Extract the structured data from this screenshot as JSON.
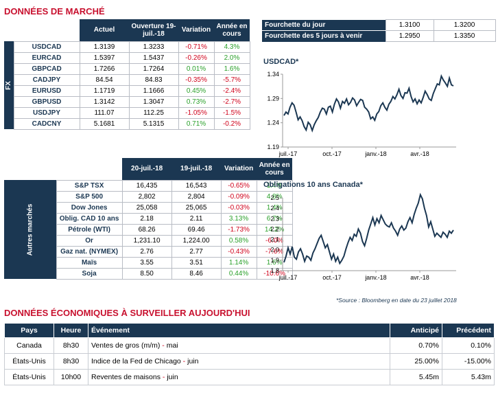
{
  "title_market": "DONNÉES DE MARCHÉ",
  "fx": {
    "side_label": "FX",
    "headers": [
      "Actuel",
      "Ouverture 19-juil.-18",
      "Variation",
      "Année en cours"
    ],
    "rows": [
      {
        "name": "USDCAD",
        "actuel": "1.3139",
        "ouverture": "1.3233",
        "variation": "-0.71%",
        "annee": "4.3%"
      },
      {
        "name": "EURCAD",
        "actuel": "1.5397",
        "ouverture": "1.5437",
        "variation": "-0.26%",
        "annee": "2.0%"
      },
      {
        "name": "GBPCAD",
        "actuel": "1.7266",
        "ouverture": "1.7264",
        "variation": "0.01%",
        "annee": "1.6%"
      },
      {
        "name": "CADJPY",
        "actuel": "84.54",
        "ouverture": "84.83",
        "variation": "-0.35%",
        "annee": "-5.7%"
      },
      {
        "name": "EURUSD",
        "actuel": "1.1719",
        "ouverture": "1.1666",
        "variation": "0.45%",
        "annee": "-2.4%"
      },
      {
        "name": "GBPUSD",
        "actuel": "1.3142",
        "ouverture": "1.3047",
        "variation": "0.73%",
        "annee": "-2.7%"
      },
      {
        "name": "USDJPY",
        "actuel": "111.07",
        "ouverture": "112.25",
        "variation": "-1.05%",
        "annee": "-1.5%"
      },
      {
        "name": "CADCNY",
        "actuel": "5.1681",
        "ouverture": "5.1315",
        "variation": "0.71%",
        "annee": "-0.2%"
      }
    ]
  },
  "other": {
    "side_label": "Autres marchés",
    "headers": [
      "20-juil.-18",
      "19-juil.-18",
      "Variation",
      "Année en cours"
    ],
    "rows": [
      {
        "name": "S&P TSX",
        "a": "16,435",
        "b": "16,543",
        "variation": "-0.65%",
        "annee": "1.4%"
      },
      {
        "name": "S&P 500",
        "a": "2,802",
        "b": "2,804",
        "variation": "-0.09%",
        "annee": "4.8%"
      },
      {
        "name": "Dow Jones",
        "a": "25,058",
        "b": "25,065",
        "variation": "-0.03%",
        "annee": "1.4%"
      },
      {
        "name": "Oblig. CAD 10 ans",
        "a": "2.18",
        "b": "2.11",
        "variation": "3.13%",
        "annee": "6.7%"
      },
      {
        "name": "Pétrole (WTI)",
        "a": "68.26",
        "b": "69.46",
        "variation": "-1.73%",
        "annee": "14.2%"
      },
      {
        "name": "Or",
        "a": "1,231.10",
        "b": "1,224.00",
        "variation": "0.58%",
        "annee": "-6.0%"
      },
      {
        "name": "Gaz nat. (NYMEX)",
        "a": "2.76",
        "b": "2.77",
        "variation": "-0.43%",
        "annee": "-7.6%"
      },
      {
        "name": "Maïs",
        "a": "3.55",
        "b": "3.51",
        "variation": "1.14%",
        "annee": "1.6%"
      },
      {
        "name": "Soja",
        "a": "8.50",
        "b": "8.46",
        "variation": "0.44%",
        "annee": "-10.6%"
      }
    ]
  },
  "range": {
    "rows": [
      {
        "label": "Fourchette du jour",
        "low": "1.3100",
        "high": "1.3200"
      },
      {
        "label": "Fourchette des 5 jours à venir",
        "low": "1.2950",
        "high": "1.3350"
      }
    ]
  },
  "colors": {
    "navy": "#1b3752",
    "red": "#c8102e",
    "neg": "#d0021b",
    "pos": "#2aa02a"
  },
  "chart_data": [
    {
      "type": "line",
      "title": "USDCAD*",
      "x_ticks": [
        "juil.-17",
        "oct.-17",
        "janv.-18",
        "avr.-18"
      ],
      "y_ticks": [
        "1.19",
        "1.24",
        "1.29",
        "1.34"
      ],
      "ylim": [
        1.19,
        1.34
      ],
      "series": [
        {
          "values": [
            1.255,
            1.262,
            1.258,
            1.272,
            1.281,
            1.276,
            1.262,
            1.246,
            1.252,
            1.244,
            1.232,
            1.225,
            1.241,
            1.236,
            1.224,
            1.236,
            1.244,
            1.251,
            1.262,
            1.27,
            1.268,
            1.258,
            1.272,
            1.274,
            1.262,
            1.278,
            1.289,
            1.283,
            1.27,
            1.284,
            1.28,
            1.289,
            1.277,
            1.282,
            1.291,
            1.287,
            1.275,
            1.282,
            1.288,
            1.286,
            1.272,
            1.268,
            1.262,
            1.248,
            1.252,
            1.245,
            1.258,
            1.263,
            1.275,
            1.281,
            1.272,
            1.266,
            1.278,
            1.284,
            1.294,
            1.289,
            1.298,
            1.309,
            1.296,
            1.29,
            1.302,
            1.301,
            1.311,
            1.294,
            1.283,
            1.289,
            1.279,
            1.287,
            1.281,
            1.292,
            1.305,
            1.298,
            1.289,
            1.286,
            1.3,
            1.31,
            1.32,
            1.318,
            1.336,
            1.328,
            1.322,
            1.315,
            1.332,
            1.318,
            1.316
          ]
        }
      ]
    },
    {
      "type": "line",
      "title": "Obligations 10 ans Canada*",
      "x_ticks": [
        "juil.-17",
        "oct.-17",
        "janv.-18",
        "avr.-18"
      ],
      "y_ticks": [
        "1.8",
        "1.9",
        "2.0",
        "2.1",
        "2.2",
        "2.3",
        "2.4",
        "2.5"
      ],
      "ylim": [
        1.8,
        2.5
      ],
      "series": [
        {
          "values": [
            1.88,
            1.94,
            2.02,
            1.96,
            2.03,
            1.93,
            1.91,
            1.98,
            2.01,
            1.96,
            1.89,
            1.94,
            1.93,
            1.9,
            1.97,
            2.01,
            2.06,
            2.11,
            2.14,
            2.08,
            2.02,
            2.05,
            1.98,
            1.91,
            1.96,
            1.89,
            1.93,
            1.87,
            1.9,
            1.94,
            2.01,
            2.07,
            2.12,
            2.09,
            2.15,
            2.13,
            2.2,
            2.16,
            2.08,
            2.04,
            2.11,
            2.19,
            2.25,
            2.31,
            2.24,
            2.3,
            2.26,
            2.33,
            2.29,
            2.25,
            2.23,
            2.22,
            2.26,
            2.21,
            2.18,
            2.14,
            2.2,
            2.23,
            2.19,
            2.21,
            2.27,
            2.31,
            2.26,
            2.34,
            2.4,
            2.45,
            2.53,
            2.49,
            2.4,
            2.33,
            2.22,
            2.27,
            2.2,
            2.13,
            2.16,
            2.14,
            2.12,
            2.17,
            2.15,
            2.12,
            2.18,
            2.16,
            2.19
          ]
        }
      ]
    }
  ],
  "source_note": "*Source : Bloomberg en date du 23 juillet 2018",
  "title_econ": "DONNÉES ÉCONOMIQUES À SURVEILLER AUJOURD'HUI",
  "econ": {
    "headers": [
      "Pays",
      "Heure",
      "Événement",
      "Anticipé",
      "Précédent"
    ],
    "rows": [
      {
        "pays": "Canada",
        "heure": "8h30",
        "event": "Ventes de gros (m/m)",
        "period": "mai",
        "anticipe": "0.70%",
        "precedent": "0.10%"
      },
      {
        "pays": "États-Unis",
        "heure": "8h30",
        "event": "Indice de la Fed de Chicago",
        "period": "juin",
        "anticipe": "25.00%",
        "precedent": "-15.00%"
      },
      {
        "pays": "États-Unis",
        "heure": "10h00",
        "event": "Reventes de maisons",
        "period": "juin",
        "anticipe": "5.45m",
        "precedent": "5.43m"
      }
    ]
  }
}
